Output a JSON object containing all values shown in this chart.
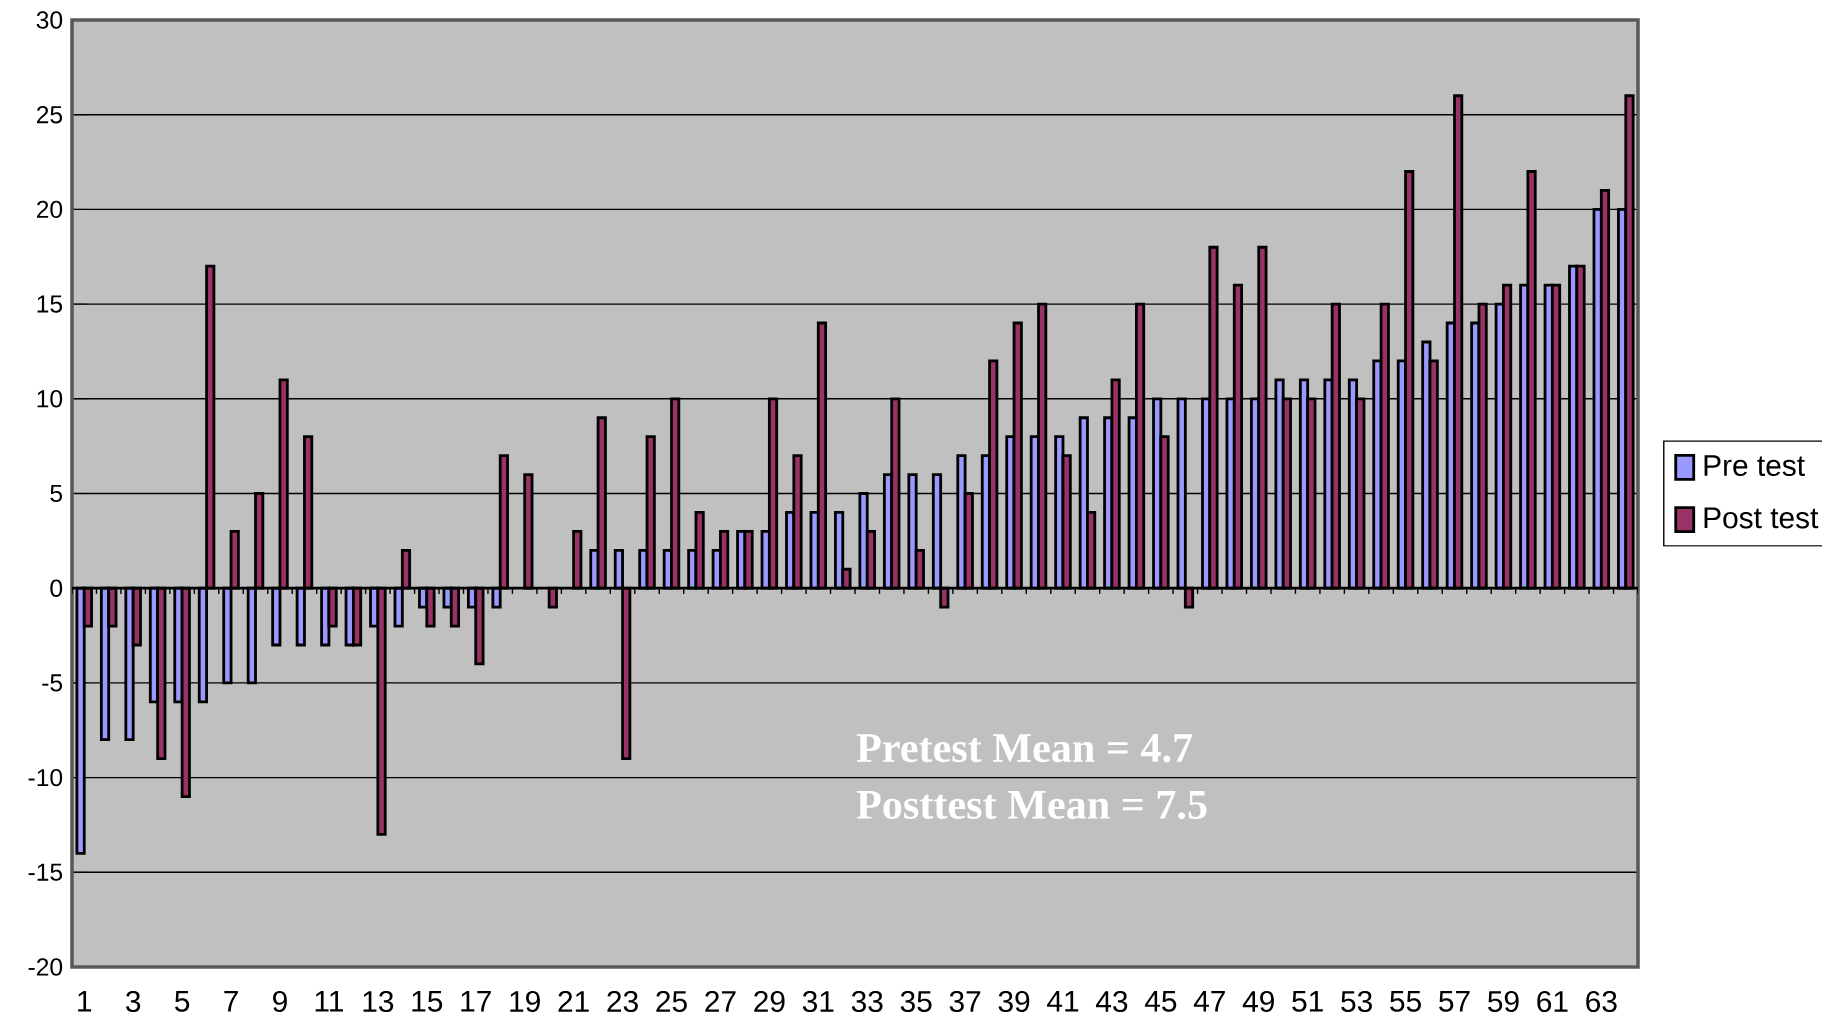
{
  "chart_data": {
    "type": "bar",
    "categories": [
      "1",
      null,
      "3",
      null,
      "5",
      null,
      "7",
      null,
      "9",
      null,
      "11",
      null,
      "13",
      null,
      "15",
      null,
      "17",
      null,
      "19",
      null,
      "21",
      null,
      "23",
      null,
      "25",
      null,
      "27",
      null,
      "29",
      null,
      "31",
      null,
      "33",
      null,
      "35",
      null,
      "37",
      null,
      "39",
      null,
      "41",
      null,
      "43",
      null,
      "45",
      null,
      "47",
      null,
      "49",
      null,
      "51",
      null,
      "53",
      null,
      "55",
      null,
      "57",
      null,
      "59",
      null,
      "61",
      null,
      "63",
      null
    ],
    "series": [
      {
        "name": "Pre test",
        "color": "#9999ff",
        "values": [
          -14,
          -8,
          -8,
          -6,
          -6,
          -6,
          -5,
          -5,
          -3,
          -3,
          -3,
          -3,
          -2,
          -2,
          -1,
          -1,
          -1,
          -1,
          null,
          null,
          null,
          2,
          2,
          2,
          2,
          2,
          2,
          3,
          3,
          4,
          4,
          4,
          5,
          6,
          6,
          6,
          7,
          7,
          8,
          8,
          8,
          9,
          9,
          9,
          10,
          10,
          10,
          10,
          10,
          11,
          11,
          11,
          11,
          12,
          12,
          13,
          14,
          14,
          15,
          16,
          16,
          17,
          20,
          20
        ]
      },
      {
        "name": "Post test",
        "color": "#993366",
        "values": [
          -2,
          -2,
          -3,
          -9,
          -11,
          17,
          3,
          5,
          11,
          8,
          -2,
          -3,
          -13,
          2,
          -2,
          -2,
          -4,
          7,
          6,
          -1,
          3,
          9,
          -9,
          8,
          10,
          4,
          3,
          3,
          10,
          7,
          14,
          1,
          3,
          10,
          2,
          -1,
          5,
          12,
          14,
          15,
          7,
          4,
          11,
          15,
          8,
          -1,
          18,
          16,
          18,
          10,
          10,
          15,
          10,
          15,
          22,
          12,
          26,
          15,
          16,
          22,
          16,
          17,
          21,
          26
        ]
      }
    ],
    "ylim": [
      -20,
      30
    ],
    "yticks": [
      -20,
      -15,
      -10,
      -5,
      0,
      5,
      10,
      15,
      20,
      25,
      30
    ],
    "grid": "y",
    "legend": "right",
    "annotations": [
      "Pretest Mean = 4.7",
      "Posttest Mean = 7.5"
    ]
  }
}
